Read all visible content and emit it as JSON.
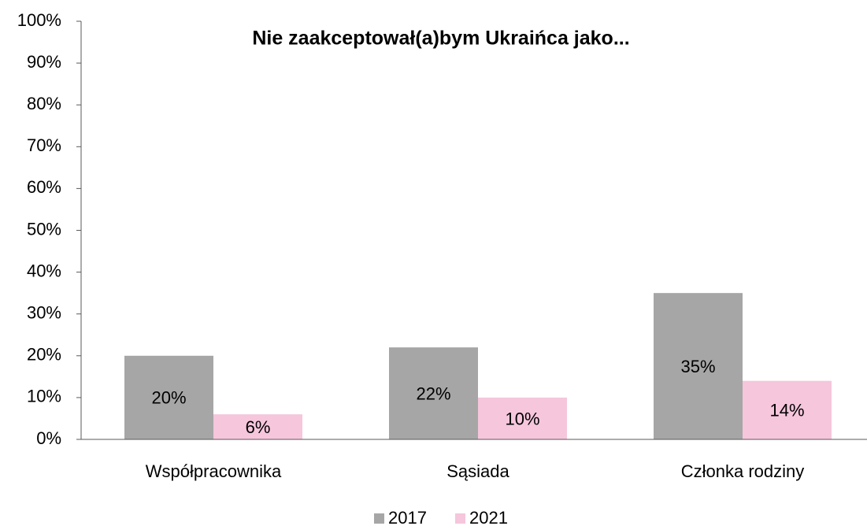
{
  "chart_data": {
    "type": "bar",
    "title": "Nie zaakceptował(a)bym Ukraińca jako...",
    "categories": [
      "Współpracownika",
      "Sąsiada",
      "Członka rodziny"
    ],
    "series": [
      {
        "name": "2017",
        "color": "#a6a6a6",
        "values": [
          20,
          22,
          35
        ],
        "value_labels": [
          "20%",
          "22%",
          "35%"
        ]
      },
      {
        "name": "2021",
        "color": "#f5c6dc",
        "values": [
          6,
          10,
          14
        ],
        "value_labels": [
          "6%",
          "10%",
          "14%"
        ]
      }
    ],
    "ylim": [
      0,
      100
    ],
    "yticks": [
      {
        "value": 0,
        "label": "0%"
      },
      {
        "value": 10,
        "label": "10%"
      },
      {
        "value": 20,
        "label": "20%"
      },
      {
        "value": 30,
        "label": "30%"
      },
      {
        "value": 40,
        "label": "40%"
      },
      {
        "value": 50,
        "label": "50%"
      },
      {
        "value": 60,
        "label": "60%"
      },
      {
        "value": 70,
        "label": "70%"
      },
      {
        "value": 80,
        "label": "80%"
      },
      {
        "value": 90,
        "label": "90%"
      },
      {
        "value": 100,
        "label": "100%"
      }
    ],
    "grid": false,
    "legend": "bottom"
  }
}
